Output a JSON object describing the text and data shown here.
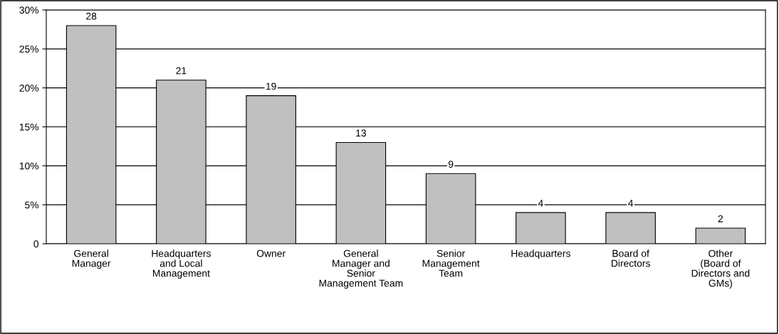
{
  "chart_data": {
    "type": "bar",
    "categories": [
      "General\nManager",
      "Headquarters\nand Local\nManagement",
      "Owner",
      "General\nManager and\nSenior\nManagement Team",
      "Senior\nManagement\nTeam",
      "Headquarters",
      "Board of\nDirectors",
      "Other\n(Board of\nDirectors and\nGMs)"
    ],
    "values": [
      28,
      21,
      19,
      13,
      9,
      4,
      4,
      2
    ],
    "color": "#c0c0c0",
    "data_labels": true,
    "ylim": [
      0,
      30
    ],
    "yticks": [
      {
        "value": 0,
        "label": "0"
      },
      {
        "value": 5,
        "label": "5%"
      },
      {
        "value": 10,
        "label": "10%"
      },
      {
        "value": 15,
        "label": "15%"
      },
      {
        "value": 20,
        "label": "20%"
      },
      {
        "value": 25,
        "label": "25%"
      },
      {
        "value": 30,
        "label": "30%"
      }
    ],
    "grid": "y"
  }
}
